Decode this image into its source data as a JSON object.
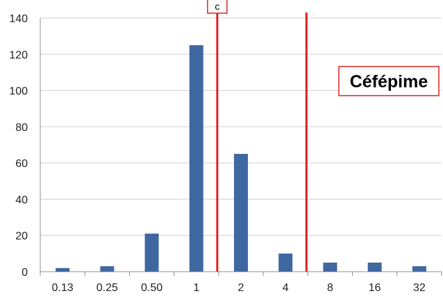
{
  "chart_data": {
    "type": "bar",
    "title": "",
    "xlabel": "",
    "ylabel": "",
    "categories": [
      "0.13",
      "0.25",
      "0.50",
      "1",
      "2",
      "4",
      "8",
      "16",
      "32"
    ],
    "series": [
      {
        "values": [
          2,
          3,
          21,
          125,
          65,
          10,
          5,
          5,
          3
        ],
        "color": "#3f67a0"
      }
    ],
    "ylim": [
      0,
      140
    ],
    "yticks": [
      0,
      20,
      40,
      60,
      80,
      100,
      120,
      140
    ],
    "grid": true,
    "annotations": [
      {
        "text": "c",
        "type": "boxed-label-on-line"
      },
      {
        "text": "Céfépime",
        "type": "boxed-label"
      }
    ],
    "reference_lines": [
      {
        "between": [
          "1",
          "2"
        ],
        "color": "#e02020"
      },
      {
        "between": [
          "4",
          "8"
        ],
        "color": "#e02020"
      }
    ]
  },
  "colors": {
    "bar": "#3f67a0",
    "reference_line": "#e02020",
    "grid": "#d0d0d0",
    "axis": "#8c8c8c"
  }
}
